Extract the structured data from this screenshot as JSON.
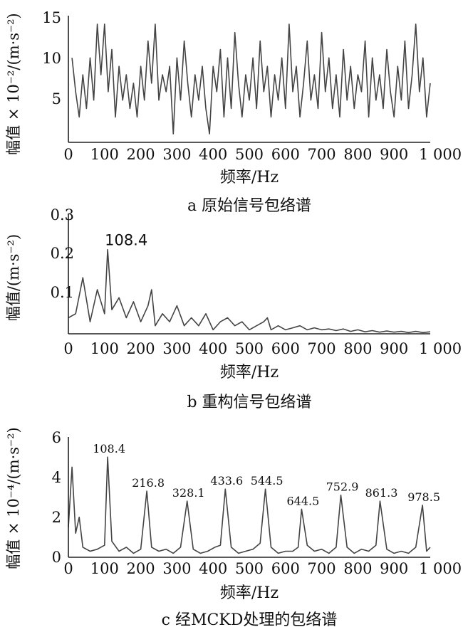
{
  "chart_data": [
    {
      "id": "a",
      "type": "line",
      "caption": "a 原始信号包络谱",
      "xlabel": "频率/Hz",
      "ylabel": "幅值 × 10⁻²/(m·s⁻²)",
      "xlim": [
        0,
        1000
      ],
      "ylim": [
        0,
        15
      ],
      "xticks": [
        "0",
        "100",
        "200",
        "300",
        "400",
        "500",
        "600",
        "700",
        "800",
        "900",
        "1 000"
      ],
      "yticks": [
        "5",
        "10",
        "15"
      ],
      "ytick_values": [
        5,
        10,
        15
      ],
      "series": [
        {
          "x": [
            10,
            20,
            30,
            40,
            50,
            60,
            70,
            80,
            90,
            100,
            110,
            120,
            130,
            140,
            150,
            160,
            170,
            180,
            190,
            200,
            210,
            220,
            230,
            240,
            250,
            260,
            270,
            280,
            290,
            300,
            310,
            320,
            330,
            340,
            350,
            360,
            370,
            380,
            390,
            400,
            410,
            420,
            430,
            440,
            450,
            460,
            470,
            480,
            490,
            500,
            510,
            520,
            530,
            540,
            550,
            560,
            570,
            580,
            590,
            600,
            610,
            620,
            630,
            640,
            650,
            660,
            670,
            680,
            690,
            700,
            710,
            720,
            730,
            740,
            750,
            760,
            770,
            780,
            790,
            800,
            810,
            820,
            830,
            840,
            850,
            860,
            870,
            880,
            890,
            900,
            910,
            920,
            930,
            940,
            950,
            960,
            970,
            980,
            990,
            1000
          ],
          "y": [
            10,
            6,
            3,
            8,
            4,
            10,
            5,
            14,
            8,
            14,
            6,
            11,
            3,
            9,
            5,
            8,
            4,
            7,
            3,
            9,
            5,
            12,
            7,
            14,
            5,
            8,
            6,
            9,
            1,
            10,
            5,
            12,
            7,
            3,
            8,
            5,
            9,
            4,
            1,
            9,
            6,
            11,
            3,
            10,
            4,
            13,
            7,
            3,
            8,
            5,
            10,
            4,
            12,
            6,
            9,
            3,
            8,
            5,
            10,
            4,
            14,
            6,
            9,
            3,
            7,
            12,
            5,
            8,
            4,
            13,
            6,
            10,
            4,
            8,
            3,
            11,
            5,
            9,
            4,
            8,
            6,
            12,
            3,
            10,
            5,
            8,
            4,
            11,
            6,
            3,
            9,
            5,
            12,
            4,
            8,
            14,
            6,
            10,
            3,
            7
          ]
        }
      ]
    },
    {
      "id": "b",
      "type": "line",
      "caption": "b 重构信号包络谱",
      "xlabel": "频率/Hz",
      "ylabel": "幅值/(m·s⁻²)",
      "xlim": [
        0,
        1000
      ],
      "ylim": [
        0,
        0.3
      ],
      "xticks": [
        "0",
        "100",
        "200",
        "300",
        "400",
        "500",
        "600",
        "700",
        "800",
        "900",
        "1 000"
      ],
      "yticks": [
        "0.1",
        "0.2",
        "0.3"
      ],
      "ytick_values": [
        0.1,
        0.2,
        0.3
      ],
      "annotations": [
        {
          "text": "108.4",
          "x": 108.4,
          "y": 0.21
        }
      ],
      "series": [
        {
          "x": [
            0,
            20,
            40,
            60,
            80,
            100,
            108.4,
            120,
            140,
            160,
            180,
            200,
            220,
            230,
            240,
            260,
            280,
            300,
            320,
            340,
            360,
            380,
            400,
            420,
            440,
            460,
            480,
            500,
            520,
            540,
            550,
            560,
            580,
            600,
            620,
            640,
            660,
            680,
            700,
            720,
            740,
            760,
            780,
            800,
            820,
            840,
            860,
            880,
            900,
            920,
            940,
            960,
            980,
            1000
          ],
          "y": [
            0.04,
            0.05,
            0.14,
            0.03,
            0.11,
            0.05,
            0.21,
            0.06,
            0.09,
            0.04,
            0.08,
            0.03,
            0.07,
            0.11,
            0.02,
            0.05,
            0.03,
            0.07,
            0.02,
            0.04,
            0.02,
            0.05,
            0.01,
            0.03,
            0.04,
            0.02,
            0.03,
            0.01,
            0.02,
            0.03,
            0.04,
            0.01,
            0.02,
            0.01,
            0.015,
            0.02,
            0.01,
            0.015,
            0.01,
            0.012,
            0.008,
            0.012,
            0.006,
            0.01,
            0.005,
            0.008,
            0.004,
            0.007,
            0.004,
            0.006,
            0.003,
            0.006,
            0.003,
            0.005
          ]
        }
      ]
    },
    {
      "id": "c",
      "type": "line",
      "caption": "c 经MCKD处理的包络谱",
      "xlabel": "频率/Hz",
      "ylabel": "幅值 × 10⁻⁴/(m·s⁻²)",
      "xlim": [
        0,
        1000
      ],
      "ylim": [
        0,
        6
      ],
      "xticks": [
        "0",
        "100",
        "200",
        "300",
        "400",
        "500",
        "600",
        "700",
        "800",
        "900",
        "1 000"
      ],
      "yticks": [
        "0",
        "2",
        "4",
        "6"
      ],
      "ytick_values": [
        0,
        2,
        4,
        6
      ],
      "annotations": [
        {
          "text": "108.4",
          "x": 108.4,
          "y": 5.0
        },
        {
          "text": "216.8",
          "x": 216.8,
          "y": 3.3
        },
        {
          "text": "328.1",
          "x": 328.1,
          "y": 2.8
        },
        {
          "text": "433.6",
          "x": 433.6,
          "y": 3.4
        },
        {
          "text": "544.5",
          "x": 544.5,
          "y": 3.4
        },
        {
          "text": "644.5",
          "x": 644.5,
          "y": 2.4
        },
        {
          "text": "752.9",
          "x": 752.9,
          "y": 3.1
        },
        {
          "text": "861.3",
          "x": 861.3,
          "y": 2.8
        },
        {
          "text": "978.5",
          "x": 978.5,
          "y": 2.6
        }
      ],
      "series": [
        {
          "x": [
            0,
            10,
            20,
            30,
            40,
            60,
            80,
            100,
            108.4,
            120,
            140,
            160,
            180,
            200,
            216.8,
            230,
            250,
            270,
            290,
            310,
            328.1,
            345,
            365,
            385,
            405,
            420,
            433.6,
            450,
            470,
            490,
            510,
            530,
            544.5,
            560,
            580,
            600,
            620,
            635,
            644.5,
            660,
            680,
            700,
            720,
            740,
            752.9,
            770,
            790,
            810,
            830,
            850,
            861.3,
            880,
            900,
            920,
            940,
            960,
            978.5,
            990,
            1000
          ],
          "y": [
            1.5,
            4.5,
            1.2,
            2.0,
            0.5,
            0.3,
            0.4,
            0.6,
            5.0,
            0.8,
            0.3,
            0.5,
            0.2,
            0.4,
            3.3,
            0.5,
            0.3,
            0.4,
            0.2,
            0.5,
            2.8,
            0.4,
            0.2,
            0.3,
            0.5,
            0.6,
            3.4,
            0.5,
            0.2,
            0.3,
            0.4,
            0.7,
            3.4,
            0.5,
            0.2,
            0.3,
            0.3,
            0.5,
            2.4,
            0.6,
            0.3,
            0.4,
            0.2,
            0.5,
            3.1,
            0.5,
            0.2,
            0.4,
            0.3,
            0.6,
            2.8,
            0.4,
            0.2,
            0.3,
            0.2,
            0.5,
            2.6,
            0.3,
            0.5
          ]
        }
      ]
    }
  ]
}
